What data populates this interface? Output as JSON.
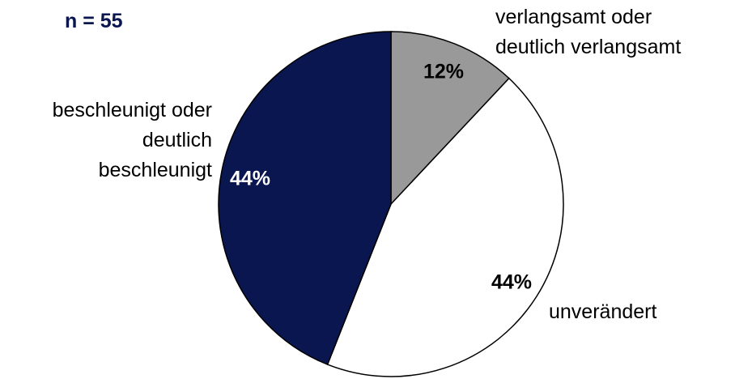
{
  "chart_data": {
    "type": "pie",
    "title": "n = 55",
    "categories": [
      "verlangsamt oder\ndeutlich verlangsamt",
      "unverändert",
      "beschleunigt oder\ndeutlich\nbeschleunigt"
    ],
    "values": [
      12,
      44,
      44
    ],
    "value_labels": [
      "12%",
      "44%",
      "44%"
    ],
    "colors": [
      "#999999",
      "#ffffff",
      "#0a1650"
    ]
  }
}
